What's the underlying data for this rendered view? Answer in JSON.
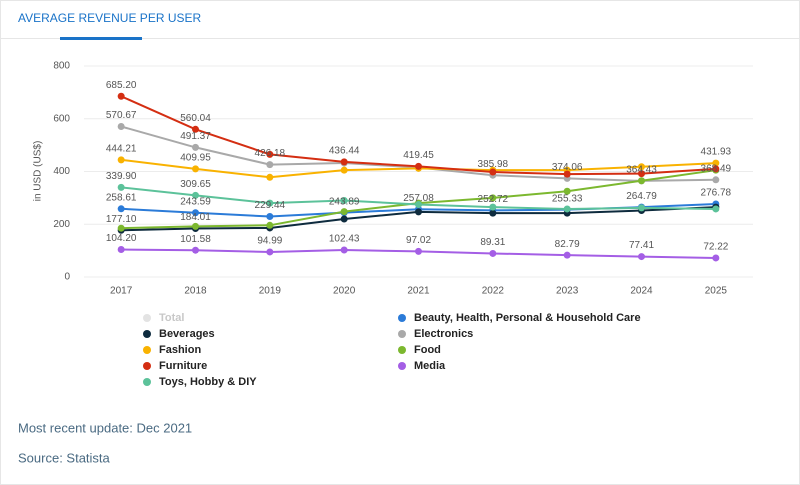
{
  "chart_data": {
    "type": "line",
    "title": "AVERAGE REVENUE PER USER",
    "y_label": "in USD (US$)",
    "categories": [
      "2017",
      "2018",
      "2019",
      "2020",
      "2021",
      "2022",
      "2023",
      "2024",
      "2025"
    ],
    "ylim": [
      0,
      800
    ],
    "yticks": [
      0,
      200,
      400,
      600,
      800
    ],
    "grid": true,
    "series": [
      {
        "name": "Total",
        "color": "#c8c8c8",
        "visible": false,
        "values": [
          null,
          null,
          null,
          null,
          null,
          null,
          null,
          null,
          null
        ]
      },
      {
        "name": "Beauty, Health, Personal & Household Care",
        "color": "#2b7bd8",
        "values": [
          258.61,
          243.59,
          229.44,
          243.89,
          257.08,
          252.72,
          255.33,
          264.79,
          276.78
        ],
        "value_labels": [
          "258.61",
          "243.59",
          "229.44",
          "243.89",
          "257.08",
          "252.72",
          "255.33",
          "264.79",
          "276.78"
        ]
      },
      {
        "name": "Beverages",
        "color": "#0e2b3e",
        "values": [
          177.1,
          184.01,
          186,
          220,
          247,
          242,
          242,
          252,
          265
        ],
        "value_labels": [
          "177.10",
          "184.01",
          null,
          null,
          null,
          null,
          null,
          null,
          null
        ]
      },
      {
        "name": "Electronics",
        "color": "#a9a9a9",
        "values": [
          570.67,
          491.37,
          426.18,
          432,
          415,
          385.98,
          374.06,
          364.43,
          368.49
        ],
        "value_labels": [
          "570.67",
          "491.37",
          "426.18",
          null,
          null,
          "385.98",
          "374.06",
          "364.43",
          "368.49"
        ]
      },
      {
        "name": "Fashion",
        "color": "#f9b200",
        "values": [
          444.21,
          409.95,
          378,
          405,
          412,
          405,
          405,
          418,
          431.93
        ],
        "value_labels": [
          "444.21",
          "409.95",
          null,
          null,
          null,
          null,
          null,
          null,
          "431.93"
        ]
      },
      {
        "name": "Food",
        "color": "#7cb82f",
        "values": [
          185,
          192,
          196,
          248,
          280,
          300,
          325,
          365,
          405
        ]
      },
      {
        "name": "Furniture",
        "color": "#d42e12",
        "values": [
          685.2,
          560.04,
          465,
          436.44,
          419.45,
          398,
          390,
          392,
          410
        ],
        "value_labels": [
          "685.20",
          "560.04",
          null,
          "436.44",
          "419.45",
          null,
          null,
          null,
          null
        ]
      },
      {
        "name": "Media",
        "color": "#a45ee5",
        "values": [
          104.2,
          101.58,
          94.99,
          102.43,
          97.02,
          89.31,
          82.79,
          77.41,
          72.22
        ],
        "value_labels": [
          "104.20",
          "101.58",
          "94.99",
          "102.43",
          "97.02",
          "89.31",
          "82.79",
          "77.41",
          "72.22"
        ]
      },
      {
        "name": "Toys, Hobby & DIY",
        "color": "#5cc29a",
        "values": [
          339.9,
          309.65,
          280,
          290,
          275,
          265,
          258,
          262,
          258
        ],
        "value_labels": [
          "339.90",
          "309.65",
          null,
          null,
          null,
          null,
          null,
          null,
          null
        ]
      }
    ]
  },
  "footer": {
    "update": "Most recent update: Dec 2021",
    "source": "Source: Statista"
  }
}
